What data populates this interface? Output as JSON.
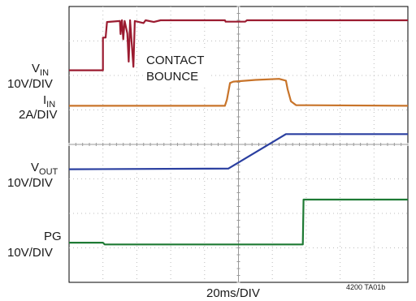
{
  "chart_data": {
    "type": "line",
    "xlabel": "20ms/DIV",
    "figure_id": "4200 TA01b",
    "annotation": [
      "CONTACT",
      "BOUNCE"
    ],
    "x_divisions": 10,
    "y_divisions": 8,
    "x_unit": "div",
    "series": [
      {
        "key": "vin",
        "label_main": "V",
        "label_sub": "IN",
        "scale": "10V/DIV",
        "color": "#9b1b30",
        "points": [
          [
            0,
            6.15
          ],
          [
            1.0,
            6.15
          ],
          [
            1.0,
            7.1
          ],
          [
            1.08,
            7.1
          ],
          [
            1.12,
            7.55
          ],
          [
            1.5,
            7.58
          ],
          [
            1.52,
            7.2
          ],
          [
            1.56,
            7.6
          ],
          [
            1.6,
            7.05
          ],
          [
            1.64,
            7.58
          ],
          [
            1.72,
            7.22
          ],
          [
            1.76,
            6.4
          ],
          [
            1.8,
            7.6
          ],
          [
            1.9,
            6.25
          ],
          [
            1.94,
            7.58
          ],
          [
            2.2,
            7.52
          ],
          [
            2.26,
            7.6
          ],
          [
            2.5,
            7.55
          ],
          [
            2.7,
            7.6
          ],
          [
            4.6,
            7.6
          ],
          [
            4.62,
            7.56
          ],
          [
            5.2,
            7.56
          ],
          [
            5.25,
            7.6
          ],
          [
            10,
            7.6
          ]
        ]
      },
      {
        "key": "iin",
        "label_main": "I",
        "label_sub": "IN",
        "scale": "2A/DIV",
        "color": "#c8742a",
        "points": [
          [
            0,
            5.12
          ],
          [
            4.6,
            5.12
          ],
          [
            4.66,
            5.3
          ],
          [
            4.75,
            5.78
          ],
          [
            4.85,
            5.82
          ],
          [
            5.5,
            5.87
          ],
          [
            6.2,
            5.9
          ],
          [
            6.4,
            5.85
          ],
          [
            6.45,
            5.6
          ],
          [
            6.55,
            5.25
          ],
          [
            6.7,
            5.14
          ],
          [
            10,
            5.12
          ]
        ]
      },
      {
        "key": "vout",
        "label_main": "V",
        "label_sub": "OUT",
        "scale": "10V/DIV",
        "color": "#2a3fa0",
        "points": [
          [
            0,
            3.28
          ],
          [
            4.7,
            3.3
          ],
          [
            6.4,
            4.3
          ],
          [
            10,
            4.3
          ]
        ]
      },
      {
        "key": "pg",
        "label_main": "PG",
        "label_sub": "",
        "scale": "10V/DIV",
        "color": "#1e7a34",
        "points": [
          [
            0,
            1.15
          ],
          [
            1.0,
            1.15
          ],
          [
            1.05,
            1.1
          ],
          [
            6.9,
            1.1
          ],
          [
            6.92,
            2.4
          ],
          [
            10,
            2.4
          ]
        ]
      }
    ]
  }
}
